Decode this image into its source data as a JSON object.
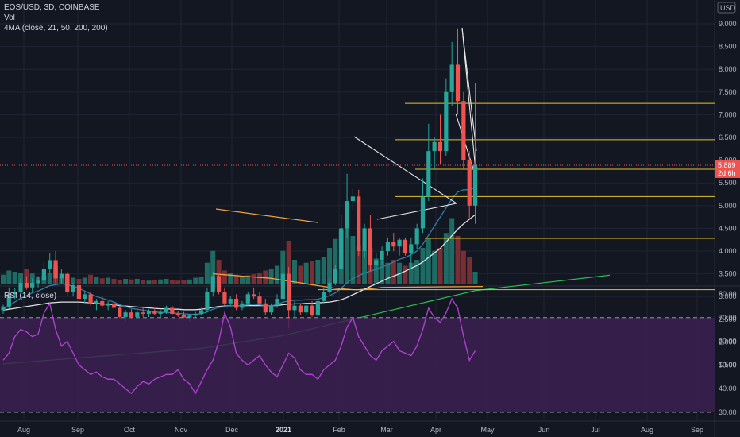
{
  "header": {
    "symbol_line": "EOS/USD, 3D, COINBASE",
    "vol_label": "Vol",
    "ma_label": "4MA (close, 21, 50, 200, 200)",
    "rsi_label": "RSI (14, close)",
    "currency_badge": "USD"
  },
  "price_badge": {
    "value": "5.889",
    "countdown": "2d 6h",
    "color": "#ef5350"
  },
  "colors": {
    "background": "#131722",
    "up": "#26a69a",
    "down": "#ef5350",
    "vol_up": "#1e6b64",
    "vol_down": "#7a2e33",
    "grid": "#1f2433",
    "ma21": "#2f7fa8",
    "ma50": "#e0e0e0",
    "ma200a": "#2ebd4f",
    "ma200b": "#f0a040",
    "hline": "#e6c229",
    "rsi_line": "#b441d6",
    "rsi_band": "#3c2151"
  },
  "chart_data": [
    {
      "type": "candlestick",
      "title": "EOS/USD, 3D, COINBASE",
      "y_ticks": [
        "9.000",
        "8.500",
        "8.000",
        "7.500",
        "7.000",
        "6.500",
        "6.000",
        "5.500",
        "5.000",
        "4.500",
        "4.000",
        "3.500",
        "3.000",
        "2.500",
        "2.000",
        "1.500"
      ],
      "x_ticks": [
        "Aug",
        "Sep",
        "Oct",
        "Nov",
        "Dec",
        "2021",
        "Feb",
        "Mar",
        "Apr",
        "May",
        "Jun",
        "Jul",
        "Aug",
        "Sep"
      ],
      "ylim": [
        1.35,
        9.3
      ],
      "last_price": 5.889,
      "candles": [
        [
          2.7,
          2.82,
          2.62,
          2.78
        ],
        [
          2.78,
          3.2,
          2.74,
          3.05
        ],
        [
          3.05,
          3.18,
          2.95,
          3.1
        ],
        [
          3.1,
          3.4,
          3.05,
          3.3
        ],
        [
          3.3,
          3.45,
          3.15,
          3.2
        ],
        [
          3.2,
          3.4,
          3.1,
          3.3
        ],
        [
          3.3,
          3.45,
          3.2,
          3.35
        ],
        [
          3.35,
          3.75,
          3.3,
          3.6
        ],
        [
          3.6,
          3.95,
          3.5,
          3.8
        ],
        [
          3.8,
          4.0,
          3.3,
          3.4
        ],
        [
          3.4,
          3.6,
          3.3,
          3.5
        ],
        [
          3.5,
          3.55,
          3.0,
          3.1
        ],
        [
          3.1,
          3.3,
          3.0,
          3.25
        ],
        [
          3.25,
          3.3,
          2.9,
          2.95
        ],
        [
          2.95,
          3.1,
          2.85,
          3.05
        ],
        [
          3.05,
          3.1,
          2.8,
          2.85
        ],
        [
          2.85,
          2.95,
          2.7,
          2.9
        ],
        [
          2.9,
          3.0,
          2.75,
          2.8
        ],
        [
          2.8,
          2.9,
          2.7,
          2.85
        ],
        [
          2.85,
          2.88,
          2.7,
          2.75
        ],
        [
          2.75,
          2.8,
          2.5,
          2.55
        ],
        [
          2.55,
          2.7,
          2.45,
          2.65
        ],
        [
          2.65,
          2.72,
          2.5,
          2.55
        ],
        [
          2.55,
          2.7,
          2.5,
          2.65
        ],
        [
          2.65,
          2.78,
          2.55,
          2.62
        ],
        [
          2.62,
          2.72,
          2.55,
          2.68
        ],
        [
          2.68,
          2.75,
          2.6,
          2.62
        ],
        [
          2.62,
          2.7,
          2.55,
          2.66
        ],
        [
          2.66,
          2.8,
          2.62,
          2.75
        ],
        [
          2.75,
          2.8,
          2.6,
          2.62
        ],
        [
          2.62,
          2.68,
          2.55,
          2.6
        ],
        [
          2.6,
          2.66,
          2.5,
          2.54
        ],
        [
          2.54,
          2.62,
          2.45,
          2.58
        ],
        [
          2.58,
          2.66,
          2.52,
          2.62
        ],
        [
          2.62,
          2.75,
          2.58,
          2.7
        ],
        [
          2.7,
          3.2,
          2.65,
          3.1
        ],
        [
          3.1,
          3.55,
          3.0,
          3.45
        ],
        [
          3.45,
          3.5,
          3.05,
          3.1
        ],
        [
          3.1,
          3.2,
          2.8,
          2.85
        ],
        [
          2.85,
          3.0,
          2.78,
          2.95
        ],
        [
          2.95,
          3.05,
          2.7,
          2.75
        ],
        [
          2.75,
          2.9,
          2.7,
          2.85
        ],
        [
          2.85,
          3.1,
          2.8,
          3.05
        ],
        [
          3.05,
          3.2,
          2.95,
          3.0
        ],
        [
          3.0,
          3.1,
          2.8,
          2.85
        ],
        [
          2.85,
          2.95,
          2.6,
          2.65
        ],
        [
          2.65,
          2.85,
          2.6,
          2.8
        ],
        [
          2.8,
          3.05,
          2.75,
          2.95
        ],
        [
          2.95,
          3.7,
          2.9,
          3.5
        ],
        [
          3.5,
          3.65,
          2.3,
          2.7
        ],
        [
          2.7,
          2.9,
          2.55,
          2.8
        ],
        [
          2.8,
          2.85,
          2.6,
          2.65
        ],
        [
          2.65,
          2.85,
          2.6,
          2.8
        ],
        [
          2.8,
          2.9,
          2.55,
          2.6
        ],
        [
          2.6,
          2.95,
          2.55,
          2.9
        ],
        [
          2.9,
          3.2,
          2.85,
          3.1
        ],
        [
          3.1,
          3.4,
          3.05,
          3.3
        ],
        [
          3.3,
          3.7,
          3.25,
          3.6
        ],
        [
          3.6,
          4.8,
          3.5,
          4.5
        ],
        [
          4.5,
          5.7,
          4.3,
          5.1
        ],
        [
          5.1,
          5.4,
          4.9,
          5.2
        ],
        [
          5.2,
          5.35,
          3.9,
          4.0
        ],
        [
          4.0,
          4.6,
          3.85,
          4.5
        ],
        [
          4.5,
          4.8,
          3.55,
          3.7
        ],
        [
          3.7,
          3.95,
          3.55,
          3.8
        ],
        [
          3.8,
          4.1,
          3.7,
          4.0
        ],
        [
          4.0,
          4.3,
          3.9,
          4.2
        ],
        [
          4.2,
          4.4,
          4.0,
          4.1
        ],
        [
          4.1,
          4.3,
          3.9,
          4.25
        ],
        [
          4.25,
          4.3,
          3.9,
          3.95
        ],
        [
          3.95,
          4.3,
          3.6,
          4.15
        ],
        [
          4.15,
          4.6,
          4.05,
          4.5
        ],
        [
          4.5,
          5.6,
          4.4,
          5.2
        ],
        [
          5.2,
          6.8,
          5.1,
          6.2
        ],
        [
          6.2,
          6.5,
          5.8,
          6.4
        ],
        [
          6.4,
          7.0,
          5.9,
          6.2
        ],
        [
          6.2,
          7.8,
          6.1,
          7.5
        ],
        [
          7.5,
          8.6,
          7.2,
          8.1
        ],
        [
          8.1,
          8.9,
          7.0,
          7.3
        ],
        [
          7.3,
          7.5,
          5.8,
          6.0
        ],
        [
          6.0,
          6.2,
          4.7,
          5.0
        ],
        [
          5.0,
          7.7,
          4.6,
          5.9
        ]
      ],
      "volume_up": [
        true,
        true,
        true,
        true,
        false,
        true,
        true,
        true,
        true,
        false,
        true,
        false,
        true,
        false,
        true,
        false,
        true,
        false,
        true,
        false,
        false,
        true,
        false,
        true,
        false,
        true,
        false,
        true,
        true,
        false,
        false,
        false,
        true,
        true,
        true,
        true,
        true,
        false,
        false,
        true,
        false,
        true,
        true,
        false,
        false,
        false,
        true,
        true,
        true,
        false,
        true,
        false,
        true,
        false,
        true,
        true,
        true,
        true,
        true,
        true,
        true,
        false,
        true,
        false,
        true,
        true,
        true,
        false,
        true,
        false,
        true,
        true,
        true,
        true,
        true,
        false,
        true,
        true,
        false,
        false,
        false,
        true
      ],
      "volumes": [
        0.15,
        0.22,
        0.2,
        0.18,
        0.25,
        0.17,
        0.12,
        0.14,
        0.18,
        0.3,
        0.12,
        0.16,
        0.1,
        0.08,
        0.1,
        0.15,
        0.12,
        0.09,
        0.1,
        0.08,
        0.06,
        0.08,
        0.07,
        0.08,
        0.06,
        0.05,
        0.06,
        0.07,
        0.08,
        0.06,
        0.05,
        0.06,
        0.07,
        0.1,
        0.12,
        0.35,
        0.55,
        0.4,
        0.22,
        0.18,
        0.15,
        0.12,
        0.14,
        0.16,
        0.18,
        0.22,
        0.25,
        0.3,
        0.55,
        0.72,
        0.4,
        0.3,
        0.35,
        0.38,
        0.4,
        0.45,
        0.6,
        0.75,
        0.9,
        1.0,
        0.8,
        0.65,
        0.55,
        0.6,
        0.42,
        0.38,
        0.35,
        0.4,
        0.35,
        0.3,
        0.35,
        0.4,
        0.6,
        0.75,
        0.55,
        0.6,
        0.85,
        1.1,
        0.8,
        0.55,
        0.45,
        0.2
      ],
      "horizontal_levels": [
        7.25,
        6.45,
        5.8,
        5.2,
        4.28,
        3.15
      ],
      "lines": [
        {
          "name": "MA21",
          "values": [
            2.72,
            2.8,
            2.88,
            2.96,
            3.02,
            3.08,
            3.12,
            3.18,
            3.24,
            3.26,
            3.28,
            3.26,
            3.22,
            3.18,
            3.12,
            3.06,
            3.0,
            2.96,
            2.92,
            2.88,
            2.82,
            2.78,
            2.74,
            2.72,
            2.7,
            2.68,
            2.66,
            2.65,
            2.65,
            2.64,
            2.63,
            2.62,
            2.61,
            2.61,
            2.62,
            2.66,
            2.72,
            2.76,
            2.78,
            2.8,
            2.8,
            2.8,
            2.82,
            2.83,
            2.82,
            2.8,
            2.8,
            2.82,
            2.88,
            2.9,
            2.92,
            2.92,
            2.93,
            2.93,
            2.94,
            2.98,
            3.02,
            3.08,
            3.18,
            3.3,
            3.4,
            3.46,
            3.52,
            3.56,
            3.6,
            3.65,
            3.7,
            3.76,
            3.82,
            3.86,
            3.92,
            4.0,
            4.15,
            4.35,
            4.55,
            4.75,
            4.95,
            5.15,
            5.3,
            5.35,
            5.35,
            5.4
          ]
        },
        {
          "name": "MA50",
          "values": [
            2.7,
            2.72,
            2.74,
            2.76,
            2.78,
            2.8,
            2.82,
            2.84,
            2.86,
            2.87,
            2.88,
            2.88,
            2.88,
            2.88,
            2.87,
            2.86,
            2.85,
            2.84,
            2.83,
            2.82,
            2.8,
            2.79,
            2.78,
            2.77,
            2.76,
            2.75,
            2.74,
            2.73,
            2.73,
            2.72,
            2.72,
            2.71,
            2.71,
            2.71,
            2.72,
            2.74,
            2.76,
            2.78,
            2.79,
            2.8,
            2.8,
            2.8,
            2.8,
            2.8,
            2.8,
            2.8,
            2.8,
            2.8,
            2.82,
            2.83,
            2.84,
            2.84,
            2.85,
            2.85,
            2.86,
            2.87,
            2.88,
            2.9,
            2.93,
            2.98,
            3.04,
            3.1,
            3.16,
            3.22,
            3.28,
            3.34,
            3.4,
            3.45,
            3.5,
            3.56,
            3.62,
            3.68,
            3.76,
            3.86,
            3.96,
            4.06,
            4.2,
            4.34,
            4.48,
            4.6,
            4.7,
            4.8
          ]
        },
        {
          "name": "MA200",
          "values": [
            1.52,
            1.53,
            1.54,
            1.55,
            1.56,
            1.57,
            1.58,
            1.59,
            1.6,
            1.61,
            1.62,
            1.63,
            1.64,
            1.65,
            1.66,
            1.67,
            1.68,
            1.69,
            1.7,
            1.71,
            1.72,
            1.73,
            1.74,
            1.75,
            1.76,
            1.77,
            1.78,
            1.79,
            1.8,
            1.81,
            1.82,
            1.83,
            1.84,
            1.85,
            1.86,
            1.88,
            1.9,
            1.92,
            1.94,
            1.96,
            1.98,
            2.0,
            2.02,
            2.04,
            2.06,
            2.08,
            2.1,
            2.12,
            2.14,
            2.17,
            2.2,
            2.23,
            2.26,
            2.29,
            2.32,
            2.35,
            2.38,
            2.41,
            2.44,
            2.47,
            2.5,
            2.53,
            2.56,
            2.59,
            2.62,
            2.65,
            2.68,
            2.71,
            2.74,
            2.77,
            2.8,
            2.83,
            2.86,
            2.89,
            2.92,
            2.95,
            2.98,
            3.01,
            3.04,
            3.07,
            3.1,
            3.13
          ]
        },
        {
          "name": "MA200b",
          "values": [
            3.5,
            3.49,
            3.48,
            3.47,
            3.46,
            3.45,
            3.44,
            3.43,
            3.42,
            3.41,
            3.4,
            3.38,
            3.36,
            3.34,
            3.32,
            3.3,
            3.28,
            3.26,
            3.24,
            3.22,
            3.2,
            3.18,
            3.17,
            3.16,
            3.15,
            3.15,
            3.16,
            3.17,
            3.18,
            3.2
          ]
        }
      ]
    },
    {
      "type": "line",
      "title": "RSI (14, close)",
      "y_ticks": [
        "80.00",
        "70.00",
        "60.00",
        "50.00",
        "40.00",
        "30.00"
      ],
      "ylim": [
        28,
        82
      ],
      "band": [
        30,
        70
      ],
      "values": [
        52,
        55,
        62,
        65,
        64,
        62,
        63,
        72,
        76,
        65,
        58,
        60,
        55,
        50,
        48,
        46,
        47,
        45,
        44,
        44,
        42,
        40,
        38,
        41,
        43,
        42,
        44,
        45,
        46,
        46,
        48,
        44,
        42,
        38,
        43,
        48,
        52,
        60,
        72,
        66,
        55,
        52,
        50,
        52,
        54,
        50,
        47,
        45,
        50,
        55,
        53,
        48,
        46,
        46,
        44,
        48,
        50,
        52,
        58,
        66,
        70,
        62,
        58,
        54,
        52,
        56,
        58,
        60,
        56,
        55,
        54,
        58,
        65,
        74,
        70,
        68,
        72,
        78,
        74,
        62,
        52,
        56
      ]
    }
  ]
}
